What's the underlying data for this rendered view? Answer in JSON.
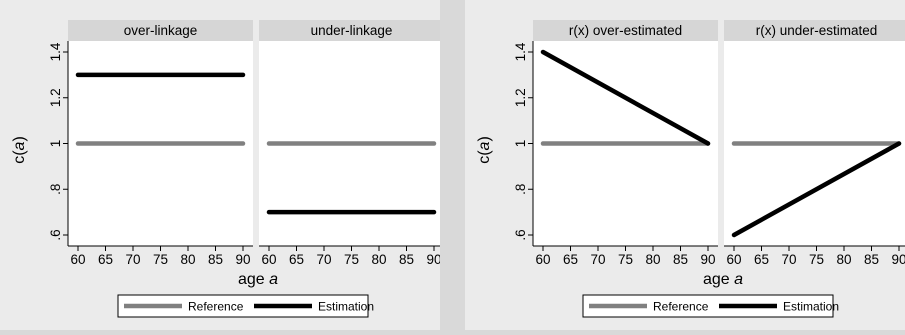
{
  "figure_left": {
    "y_label_main": "c(",
    "y_label_italic": "a",
    "y_label_end": ")",
    "x_label_main": "age ",
    "x_label_italic": "a",
    "legend": {
      "reference": "Reference",
      "estimation": "Estimation"
    }
  },
  "figure_right": {
    "y_label_main": "c(",
    "y_label_italic": "a",
    "y_label_end": ")",
    "x_label_main": "age ",
    "x_label_italic": "a",
    "legend": {
      "reference": "Reference",
      "estimation": "Estimation"
    }
  },
  "chart_data": [
    {
      "type": "line",
      "figure": "left",
      "panel_title": "over-linkage",
      "x": [
        60,
        90
      ],
      "xticks": [
        60,
        65,
        70,
        75,
        80,
        85,
        90
      ],
      "yticks": [
        0.6,
        0.8,
        1.0,
        1.2,
        1.4
      ],
      "ytick_labels": [
        ".6",
        ".8",
        "1",
        "1.2",
        "1.4"
      ],
      "xlim": [
        60,
        90
      ],
      "ylim": [
        0.6,
        1.4
      ],
      "grid": false,
      "legend": "bottom",
      "series": [
        {
          "name": "Reference",
          "color": "#808080",
          "values": [
            1.0,
            1.0
          ]
        },
        {
          "name": "Estimation",
          "color": "#000000",
          "values": [
            1.3,
            1.3
          ]
        }
      ]
    },
    {
      "type": "line",
      "figure": "left",
      "panel_title": "under-linkage",
      "x": [
        60,
        90
      ],
      "xticks": [
        60,
        65,
        70,
        75,
        80,
        85,
        90
      ],
      "yticks": [
        0.6,
        0.8,
        1.0,
        1.2,
        1.4
      ],
      "ytick_labels": [
        ".6",
        ".8",
        "1",
        "1.2",
        "1.4"
      ],
      "xlim": [
        60,
        90
      ],
      "ylim": [
        0.6,
        1.4
      ],
      "grid": false,
      "legend": "bottom",
      "series": [
        {
          "name": "Reference",
          "color": "#808080",
          "values": [
            1.0,
            1.0
          ]
        },
        {
          "name": "Estimation",
          "color": "#000000",
          "values": [
            0.7,
            0.7
          ]
        }
      ]
    },
    {
      "type": "line",
      "figure": "right",
      "panel_title": "r(x) over-estimated",
      "x": [
        60,
        90
      ],
      "xticks": [
        60,
        65,
        70,
        75,
        80,
        85,
        90
      ],
      "yticks": [
        0.6,
        0.8,
        1.0,
        1.2,
        1.4
      ],
      "ytick_labels": [
        ".6",
        ".8",
        "1",
        "1.2",
        "1.4"
      ],
      "xlim": [
        60,
        90
      ],
      "ylim": [
        0.6,
        1.4
      ],
      "grid": false,
      "legend": "bottom",
      "series": [
        {
          "name": "Reference",
          "color": "#808080",
          "values": [
            1.0,
            1.0
          ]
        },
        {
          "name": "Estimation",
          "color": "#000000",
          "values": [
            1.4,
            1.0
          ]
        }
      ]
    },
    {
      "type": "line",
      "figure": "right",
      "panel_title": "r(x) under-estimated",
      "x": [
        60,
        90
      ],
      "xticks": [
        60,
        65,
        70,
        75,
        80,
        85,
        90
      ],
      "yticks": [
        0.6,
        0.8,
        1.0,
        1.2,
        1.4
      ],
      "ytick_labels": [
        ".6",
        ".8",
        "1",
        "1.2",
        "1.4"
      ],
      "xlim": [
        60,
        90
      ],
      "ylim": [
        0.6,
        1.4
      ],
      "grid": false,
      "legend": "bottom",
      "series": [
        {
          "name": "Reference",
          "color": "#808080",
          "values": [
            1.0,
            1.0
          ]
        },
        {
          "name": "Estimation",
          "color": "#000000",
          "values": [
            0.6,
            1.0
          ]
        }
      ]
    }
  ]
}
